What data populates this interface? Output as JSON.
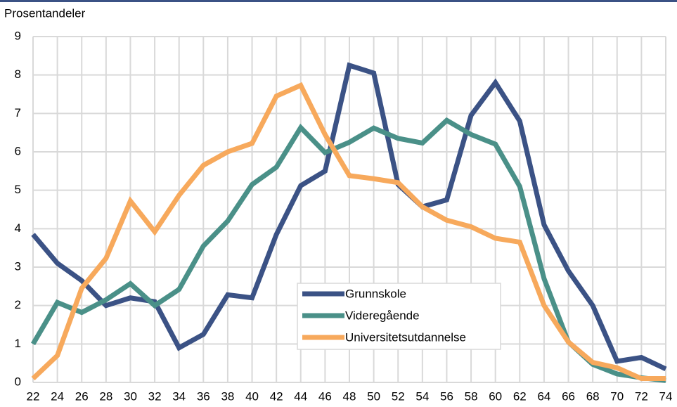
{
  "chart_data": {
    "type": "line",
    "y_label": "Prosentandeler",
    "x": [
      22,
      24,
      26,
      28,
      30,
      32,
      34,
      36,
      38,
      40,
      42,
      44,
      46,
      48,
      50,
      52,
      54,
      56,
      58,
      60,
      62,
      64,
      66,
      68,
      70,
      72,
      74
    ],
    "xlim": [
      22,
      74
    ],
    "xticks": [
      22,
      24,
      26,
      28,
      30,
      32,
      34,
      36,
      38,
      40,
      42,
      44,
      46,
      48,
      50,
      52,
      54,
      56,
      58,
      60,
      62,
      64,
      66,
      68,
      70,
      72,
      74
    ],
    "ylim": [
      0,
      9
    ],
    "yticks": [
      0,
      1,
      2,
      3,
      4,
      5,
      6,
      7,
      8,
      9
    ],
    "grid": true,
    "series": [
      {
        "name": "Grunnskole",
        "color": "#3b5285",
        "values": [
          3.85,
          3.1,
          2.65,
          2.0,
          2.2,
          2.1,
          0.9,
          1.25,
          2.28,
          2.2,
          3.85,
          5.12,
          5.5,
          8.25,
          8.05,
          5.15,
          4.57,
          4.75,
          6.95,
          7.8,
          6.8,
          4.1,
          2.9,
          2.0,
          0.55,
          0.65,
          0.35
        ]
      },
      {
        "name": "Videregående",
        "color": "#4a9088",
        "values": [
          1.0,
          2.08,
          1.82,
          2.15,
          2.57,
          2.0,
          2.42,
          3.55,
          4.2,
          5.15,
          5.6,
          6.63,
          5.98,
          6.25,
          6.62,
          6.35,
          6.23,
          6.82,
          6.45,
          6.2,
          5.1,
          2.7,
          1.05,
          0.47,
          0.22,
          0.12,
          0.05
        ]
      },
      {
        "name": "Universitetsutdannelse",
        "color": "#f7a95c",
        "values": [
          0.1,
          0.7,
          2.45,
          3.23,
          4.72,
          3.92,
          4.87,
          5.65,
          6.0,
          6.22,
          7.45,
          7.73,
          6.45,
          5.38,
          5.3,
          5.2,
          4.57,
          4.22,
          4.05,
          3.75,
          3.65,
          2.0,
          1.05,
          0.52,
          0.38,
          0.1,
          0.1
        ]
      }
    ]
  }
}
